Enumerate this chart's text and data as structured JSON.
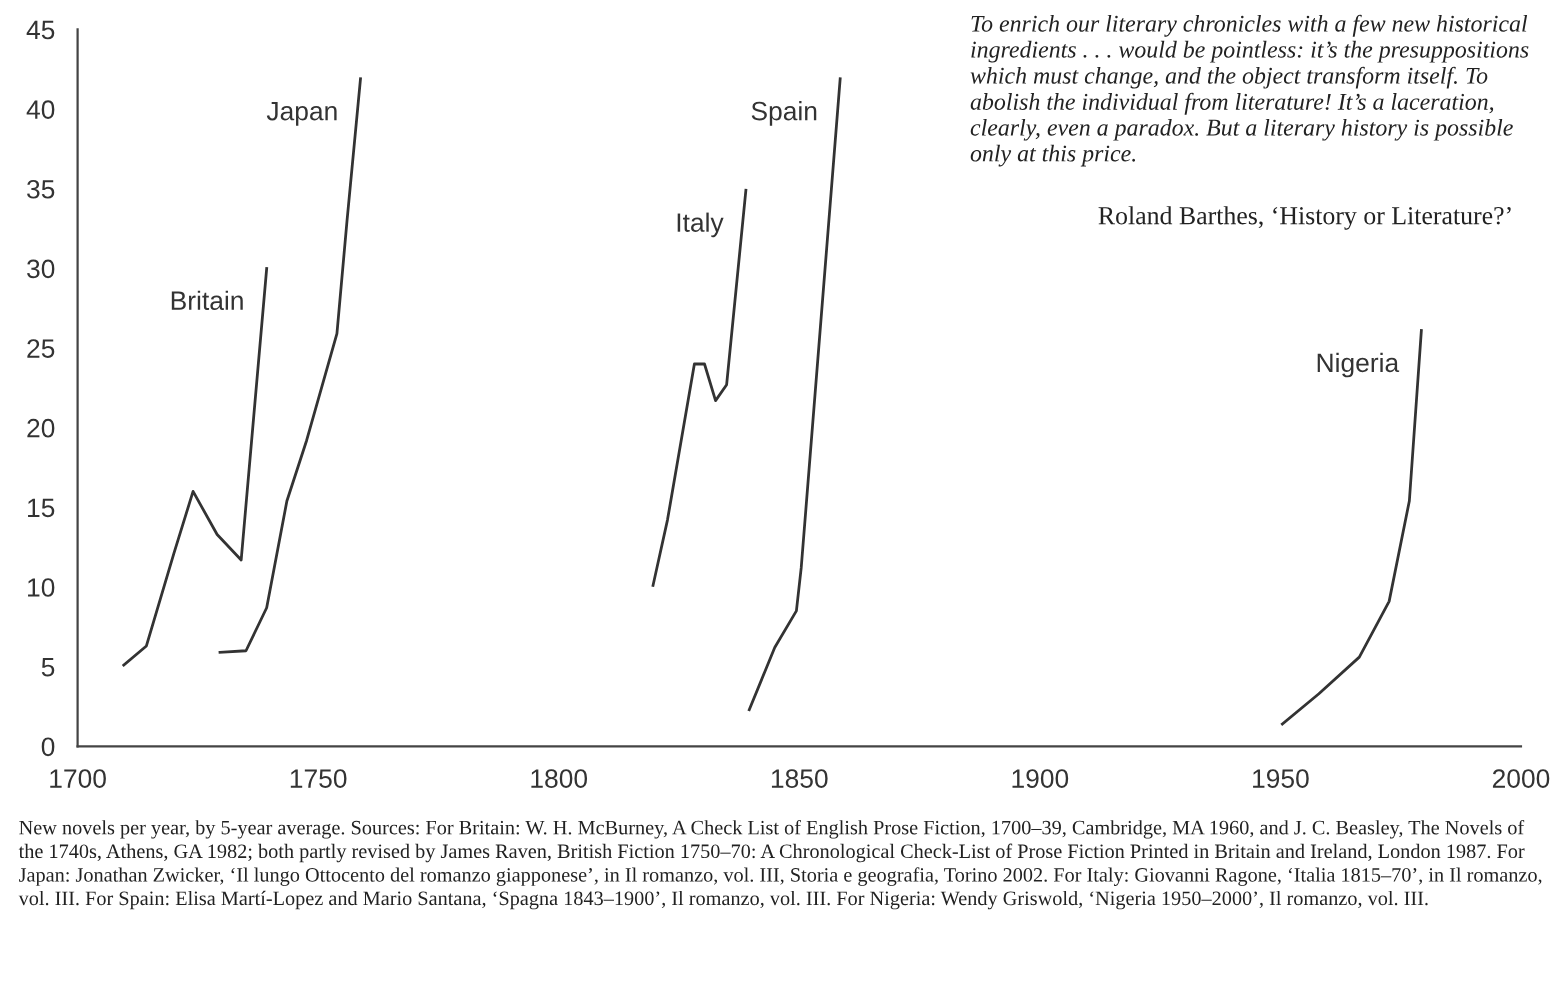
{
  "chart_data": {
    "type": "line",
    "series": [
      {
        "name": "Britain",
        "color": "#333333",
        "x": [
          1709.6,
          1714.3,
          1720,
          1724,
          1729,
          1734,
          1739.3
        ],
        "values": [
          5.1,
          6.3,
          12.1,
          16.0,
          13.3,
          11.7,
          30.0
        ]
      },
      {
        "name": "Japan",
        "color": "#333333",
        "x": [
          1729.6,
          1735,
          1739.3,
          1743.5,
          1747.6,
          1753.9,
          1756,
          1758.8
        ],
        "values": [
          5.9,
          6.0,
          8.7,
          15.4,
          19.2,
          25.9,
          33.0,
          41.9
        ]
      },
      {
        "name": "Italy",
        "color": "#333333",
        "x": [
          1819.6,
          1822.6,
          1828.2,
          1830.3,
          1832.6,
          1834.9,
          1838.9
        ],
        "values": [
          10.1,
          14.2,
          24.0,
          24.0,
          21.7,
          22.7,
          34.9
        ]
      },
      {
        "name": "Spain",
        "color": "#333333",
        "x": [
          1839.6,
          1844.9,
          1849.4,
          1850.4,
          1858.5
        ],
        "values": [
          2.3,
          6.2,
          8.5,
          11.2,
          41.9
        ]
      },
      {
        "name": "Nigeria",
        "color": "#333333",
        "x": [
          1950.4,
          1958,
          1966.4,
          1972.6,
          1976.8,
          1979.3
        ],
        "values": [
          1.4,
          3.3,
          5.6,
          9.1,
          15.4,
          26.1
        ]
      }
    ],
    "xlim": [
      1700,
      2000
    ],
    "xticks": [
      1700,
      1750,
      1800,
      1850,
      1900,
      1950,
      2000
    ],
    "ylim": [
      0,
      45
    ],
    "yticks": [
      0,
      5,
      10,
      15,
      20,
      25,
      30,
      35,
      40,
      45
    ],
    "grid": false,
    "legend": false,
    "marker": "none",
    "line_style": "solid",
    "annotations": [
      "To enrich our literary chronicles with a few new historical ingredients . . . would be pointless: it’s the presuppositions which must change, and the object transform itself. To abolish the individual from literature! It’s a laceration, clearly, even a paradox. But a literary history is possible only at this price.",
      "Roland Barthes, ‘History or Literature?’",
      "New novels per year, by 5-year average. Sources: For Britain: W. H. McBurney, A Check List of English Prose Fiction, 1700–39, Cambridge, MA 1960, and J. C. Beasley, The Novels of the 1740s, Athens, GA 1982; both partly revised by James Raven, British Fiction 1750–70: A Chronological Check-List of Prose Fiction Printed in Britain and Ireland, London 1987. For Japan: Jonathan Zwicker, ‘Il lungo Ottocento del romanzo giapponese’, in Il romanzo, vol. III, Storia e geografia, Torino 2002. For Italy: Giovanni Ragone, ‘Italia 1815–70’, in Il romanzo, vol. III. For Spain: Elisa Martí-Lopez and Mario Santana, ‘Spagna 1843–1900’, Il romanzo, vol. III. For Nigeria: Wendy Griswold, ‘Nigeria 1950–2000’, Il romanzo, vol. III."
    ]
  }
}
